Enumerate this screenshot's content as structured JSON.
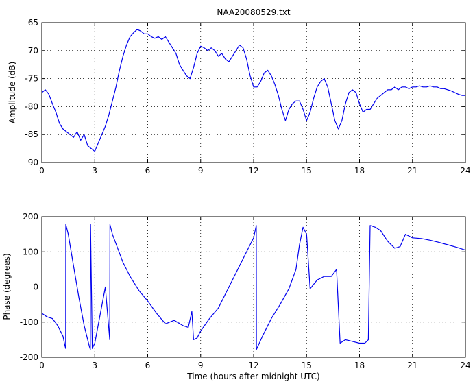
{
  "chart_data": [
    {
      "type": "line",
      "title": "NAA20080529.txt",
      "xlabel": "",
      "ylabel": "Amplitude (dB)",
      "xlim": [
        0,
        24
      ],
      "ylim": [
        -90,
        -65
      ],
      "xticks": [
        "0",
        "3",
        "6",
        "9",
        "12",
        "15",
        "18",
        "21",
        "24"
      ],
      "yticks": [
        "-65",
        "-70",
        "-75",
        "-80",
        "-85",
        "-90"
      ],
      "grid": true,
      "color": "#0000ee",
      "series": [
        {
          "x": [
            0,
            0.2,
            0.4,
            0.6,
            0.8,
            1.0,
            1.2,
            1.4,
            1.6,
            1.8,
            2.0,
            2.2,
            2.4,
            2.6,
            2.8,
            3.0,
            3.2,
            3.4,
            3.6,
            3.8,
            4.0,
            4.2,
            4.4,
            4.6,
            4.8,
            5.0,
            5.2,
            5.4,
            5.6,
            5.8,
            6.0,
            6.2,
            6.4,
            6.6,
            6.8,
            7.0,
            7.2,
            7.4,
            7.6,
            7.8,
            8.0,
            8.2,
            8.4,
            8.6,
            8.8,
            9.0,
            9.2,
            9.4,
            9.6,
            9.8,
            10.0,
            10.2,
            10.4,
            10.6,
            10.8,
            11.0,
            11.2,
            11.4,
            11.6,
            11.8,
            12.0,
            12.2,
            12.4,
            12.6,
            12.8,
            13.0,
            13.2,
            13.4,
            13.6,
            13.8,
            14.0,
            14.2,
            14.4,
            14.6,
            14.8,
            15.0,
            15.2,
            15.4,
            15.6,
            15.8,
            16.0,
            16.2,
            16.4,
            16.6,
            16.8,
            17.0,
            17.2,
            17.4,
            17.6,
            17.8,
            18.0,
            18.2,
            18.4,
            18.6,
            18.8,
            19.0,
            19.2,
            19.4,
            19.6,
            19.8,
            20.0,
            20.2,
            20.4,
            20.6,
            20.8,
            21.0,
            21.2,
            21.4,
            21.6,
            21.8,
            22.0,
            22.2,
            22.4,
            22.6,
            22.8,
            23.0,
            23.2,
            23.4,
            23.6,
            23.8,
            24.0
          ],
          "y": [
            -77.5,
            -77.0,
            -77.8,
            -79.5,
            -81.0,
            -83.0,
            -84.0,
            -84.5,
            -85.0,
            -85.5,
            -84.5,
            -86.0,
            -85.0,
            -87.0,
            -87.5,
            -88.0,
            -86.5,
            -85.0,
            -83.5,
            -81.5,
            -79.0,
            -76.5,
            -73.5,
            -71.0,
            -69.0,
            -67.5,
            -66.8,
            -66.2,
            -66.5,
            -67.0,
            -67.0,
            -67.5,
            -67.8,
            -67.5,
            -68.0,
            -67.5,
            -68.5,
            -69.5,
            -70.5,
            -72.5,
            -73.5,
            -74.5,
            -75.0,
            -73.0,
            -70.5,
            -69.2,
            -69.5,
            -70.0,
            -69.5,
            -70.0,
            -71.0,
            -70.5,
            -71.5,
            -72.0,
            -71.0,
            -70.0,
            -69.0,
            -69.5,
            -71.5,
            -74.5,
            -76.5,
            -76.5,
            -75.5,
            -74.0,
            -73.5,
            -74.5,
            -76.0,
            -78.0,
            -80.5,
            -82.5,
            -80.5,
            -79.5,
            -79.0,
            -79.0,
            -80.5,
            -82.5,
            -81.0,
            -78.5,
            -76.5,
            -75.5,
            -75.0,
            -76.5,
            -79.5,
            -82.5,
            -84.0,
            -82.5,
            -79.5,
            -77.5,
            -77.0,
            -77.5,
            -79.5,
            -81.0,
            -80.5,
            -80.5,
            -79.5,
            -78.5,
            -78.0,
            -77.5,
            -77.0,
            -77.0,
            -76.5,
            -77.0,
            -76.5,
            -76.5,
            -76.8,
            -76.5,
            -76.5,
            -76.3,
            -76.5,
            -76.5,
            -76.3,
            -76.5,
            -76.5,
            -76.8,
            -76.8,
            -77.0,
            -77.2,
            -77.5,
            -77.8,
            -78.0,
            -78.0
          ]
        }
      ]
    },
    {
      "type": "line",
      "title": "",
      "xlabel": "Time (hours after midnight UTC)",
      "ylabel": "Phase (degrees)",
      "xlim": [
        0,
        24
      ],
      "ylim": [
        -200,
        200
      ],
      "xticks": [
        "0",
        "3",
        "6",
        "9",
        "12",
        "15",
        "18",
        "21",
        "24"
      ],
      "yticks": [
        "200",
        "100",
        "0",
        "-100",
        "-200"
      ],
      "grid": true,
      "color": "#0000ee",
      "series": [
        {
          "x": [
            0,
            0.3,
            0.6,
            0.9,
            1.2,
            1.3,
            1.35,
            1.36,
            1.5,
            1.8,
            2.1,
            2.4,
            2.7,
            2.75,
            2.76,
            2.85,
            2.86,
            3.0,
            3.3,
            3.6,
            3.85,
            3.86,
            4.0,
            4.3,
            4.6,
            5.0,
            5.5,
            6.0,
            6.5,
            7.0,
            7.5,
            8.0,
            8.3,
            8.5,
            8.6,
            8.8,
            9.0,
            9.5,
            10.0,
            10.5,
            11.0,
            11.5,
            12.0,
            12.15,
            12.16,
            12.5,
            13.0,
            13.5,
            14.0,
            14.4,
            14.6,
            14.8,
            15.0,
            15.2,
            15.6,
            16.0,
            16.4,
            16.7,
            16.9,
            17.2,
            17.6,
            18.0,
            18.3,
            18.5,
            18.6,
            18.9,
            19.2,
            19.6,
            20.0,
            20.3,
            20.6,
            21.0,
            21.5,
            22.0,
            22.5,
            23.0,
            23.5,
            24.0
          ],
          "y": [
            -75,
            -85,
            -90,
            -110,
            -140,
            -165,
            -175,
            178,
            150,
            60,
            -30,
            -110,
            -170,
            -178,
            178,
            -140,
            -175,
            -160,
            -80,
            0,
            -150,
            178,
            150,
            110,
            70,
            30,
            -10,
            -40,
            -75,
            -105,
            -95,
            -110,
            -115,
            -70,
            -150,
            -145,
            -125,
            -90,
            -60,
            -10,
            40,
            90,
            140,
            175,
            -178,
            -140,
            -90,
            -50,
            -5,
            50,
            120,
            170,
            150,
            -5,
            20,
            30,
            30,
            50,
            -160,
            -150,
            -155,
            -160,
            -160,
            -150,
            175,
            170,
            160,
            130,
            110,
            115,
            150,
            140,
            138,
            133,
            127,
            120,
            113,
            105
          ]
        }
      ]
    }
  ]
}
